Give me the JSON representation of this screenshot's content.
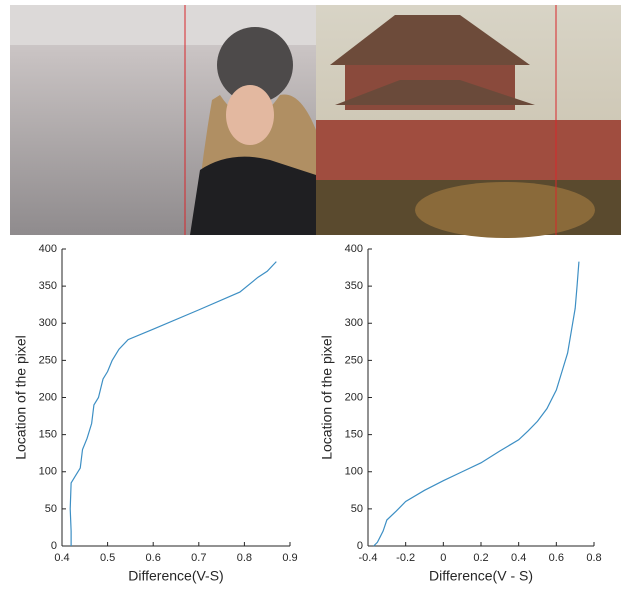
{
  "chart_data": [
    {
      "type": "line",
      "xlabel": "Difference(V-S)",
      "ylabel": "Location of the pixel",
      "color": "#3d8fc4",
      "x": [
        0.42,
        0.42,
        0.418,
        0.42,
        0.43,
        0.44,
        0.445,
        0.455,
        0.465,
        0.47,
        0.48,
        0.49,
        0.5,
        0.51,
        0.525,
        0.545,
        0.6,
        0.7,
        0.79,
        0.83,
        0.85,
        0.87
      ],
      "values": [
        0,
        20,
        50,
        85,
        95,
        105,
        130,
        145,
        165,
        190,
        200,
        225,
        235,
        250,
        265,
        278,
        292,
        318,
        342,
        362,
        370,
        383
      ],
      "xlim": [
        0.4,
        0.9
      ],
      "xticks": [
        0.4,
        0.5,
        0.6,
        0.7,
        0.8,
        0.9
      ],
      "ylim": [
        0,
        400
      ],
      "yticks": [
        0,
        50,
        100,
        150,
        200,
        250,
        300,
        350,
        400
      ]
    },
    {
      "type": "line",
      "xlabel": "Difference(V - S)",
      "ylabel": "Location of the pixel",
      "color": "#3d8fc4",
      "x": [
        -0.37,
        -0.35,
        -0.32,
        -0.3,
        -0.25,
        -0.2,
        -0.1,
        0,
        0.1,
        0.2,
        0.3,
        0.4,
        0.45,
        0.5,
        0.55,
        0.6,
        0.63,
        0.66,
        0.68,
        0.7,
        0.71,
        0.72
      ],
      "values": [
        0,
        5,
        20,
        35,
        47,
        60,
        75,
        88,
        100,
        112,
        128,
        143,
        155,
        168,
        185,
        210,
        235,
        260,
        290,
        320,
        350,
        383
      ],
      "xlim": [
        -0.4,
        0.8
      ],
      "xticks": [
        -0.4,
        -0.2,
        0,
        0.2,
        0.4,
        0.6,
        0.8
      ],
      "ylim": [
        0,
        400
      ],
      "yticks": [
        0,
        50,
        100,
        150,
        200,
        250,
        300,
        350,
        400
      ]
    }
  ]
}
